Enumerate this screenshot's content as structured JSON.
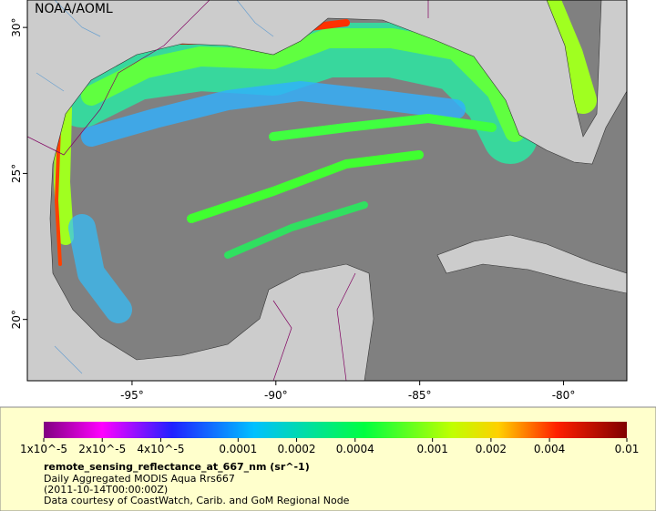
{
  "map": {
    "source_label": "NOAA/AOML",
    "lonlim": [
      -98.64,
      -77.8
    ],
    "latlim": [
      17.9,
      30.94
    ],
    "lon_ticks": [
      {
        "value": -95,
        "label": "-95°"
      },
      {
        "value": -90,
        "label": "-90°"
      },
      {
        "value": -85,
        "label": "-85°"
      },
      {
        "value": -80,
        "label": "-80°"
      }
    ],
    "lat_ticks": [
      {
        "value": 30,
        "label": "30°"
      },
      {
        "value": 25,
        "label": "25°"
      },
      {
        "value": 20,
        "label": "20°"
      }
    ]
  },
  "colorbar": {
    "log_scale": true,
    "lim": [
      1e-05,
      0.01
    ],
    "ticks": [
      {
        "value": 1e-05,
        "label": "1x10^-5"
      },
      {
        "value": 2e-05,
        "label": "2x10^-5"
      },
      {
        "value": 4e-05,
        "label": "4x10^-5"
      },
      0.0001,
      0.0002,
      0.0004,
      0.001,
      0.002,
      0.004,
      0.01
    ]
  },
  "legend": {
    "title": "remote_sensing_reflectance_at_667_nm (sr^-1)",
    "lines": [
      "Daily Aggregated MODIS Aqua Rrs667",
      "(2011-10-14T00:00:00Z)",
      "Data courtesy of CoastWatch, Carib. and GoM Regional Node"
    ]
  }
}
